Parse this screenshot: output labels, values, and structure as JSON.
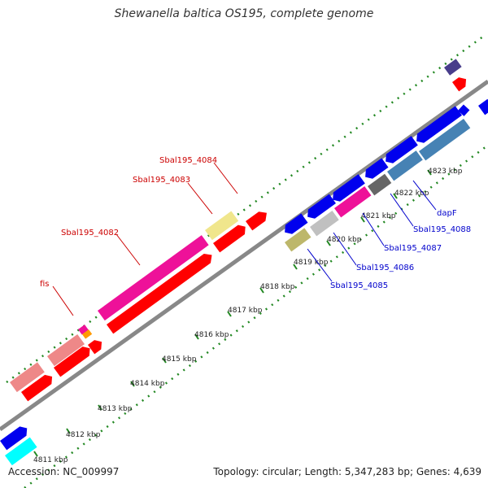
{
  "title": "Shewanella baltica OS195, complete genome",
  "footer": {
    "accession": "Accession: NC_009997",
    "summary": "Topology: circular; Length: 5,347,283 bp; Genes: 4,639"
  },
  "scale_labels": [
    "4811 kbp",
    "4812 kbp",
    "4813 kbp",
    "4814 kbp",
    "4815 kbp",
    "4816 kbp",
    "4817 kbp",
    "4818 kbp",
    "4819 kbp",
    "4820 kbp",
    "4821 kbp",
    "4822 kbp",
    "4823 kbp"
  ],
  "outer_labels": [
    "Sbal195_4084",
    "Sbal195_4083",
    "Sbal195_4082",
    "fis"
  ],
  "inner_labels": [
    "Sbal195_4085",
    "Sbal195_4086",
    "Sbal195_4087",
    "Sbal195_4088",
    "dapF"
  ],
  "colors": {
    "outer_label": "#cc0000",
    "inner_label": "#0000cc",
    "backbone": "#888888",
    "dots": "#228822",
    "cds_red": "#ff0000",
    "cds_blue": "#0000ee",
    "rRNA_pink": "#ee1199",
    "misc_salmon": "#ee8888",
    "steel": "#4682b4",
    "khaki": "#f0e68c",
    "olive": "#bdb76b",
    "cyan": "#00ffff",
    "gray": "#666666",
    "silver": "#c0c0c0",
    "navy": "#483d8b",
    "orange": "#ff9900"
  }
}
